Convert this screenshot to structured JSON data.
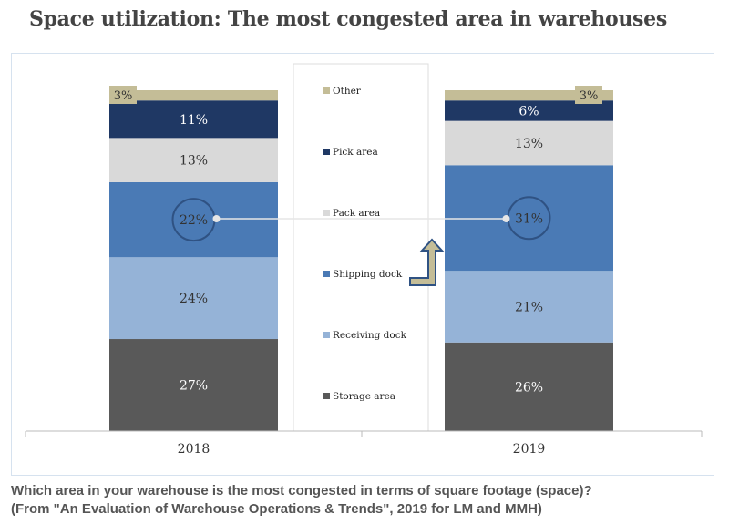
{
  "chart_data": {
    "type": "bar",
    "stacked": true,
    "title": "Space utilization:  The most congested area in warehouses",
    "categories": [
      "2018",
      "2019"
    ],
    "series": [
      {
        "name": "Storage area",
        "color": "#595959",
        "values": [
          27,
          26
        ]
      },
      {
        "name": "Receiving dock",
        "color": "#95b3d7",
        "values": [
          24,
          21
        ]
      },
      {
        "name": "Shipping dock",
        "color": "#4a7ab5",
        "values": [
          22,
          31
        ]
      },
      {
        "name": "Pack area",
        "color": "#d9d9d9",
        "values": [
          13,
          13
        ]
      },
      {
        "name": "Pick area",
        "color": "#1f3864",
        "values": [
          11,
          6
        ]
      },
      {
        "name": "Other",
        "color": "#c4bd97",
        "values": [
          3,
          3
        ]
      }
    ],
    "ylim": [
      0,
      100
    ],
    "legend": "center",
    "grid": false,
    "highlight": "Shipping dock"
  },
  "caption": {
    "line1": "Which area in your warehouse is the most congested in terms of square footage (space)?",
    "line2": "(From \"An Evaluation of Warehouse Operations & Trends\", 2019 for LM and MMH)"
  }
}
